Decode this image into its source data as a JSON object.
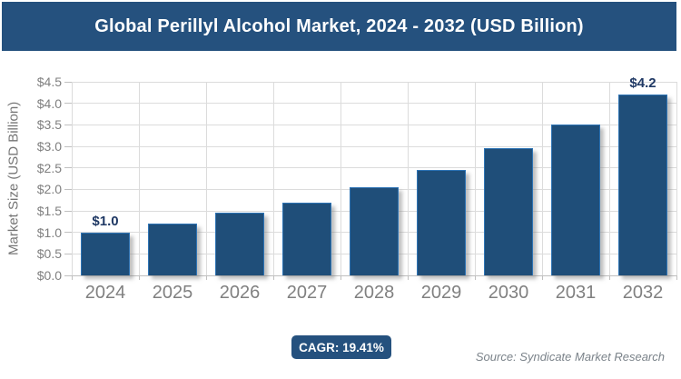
{
  "header": {
    "title": "Global Perillyl Alcohol Market, 2024 - 2032 (USD Billion)"
  },
  "chart_data": {
    "type": "bar",
    "title": "Global Perillyl Alcohol Market, 2024 - 2032 (USD Billion)",
    "categories": [
      "2024",
      "2025",
      "2026",
      "2027",
      "2028",
      "2029",
      "2030",
      "2031",
      "2032"
    ],
    "values": [
      1.0,
      1.2,
      1.45,
      1.7,
      2.05,
      2.45,
      2.95,
      3.5,
      4.2
    ],
    "point_labels": {
      "2024": "$1.0",
      "2032": "$4.2"
    },
    "xlabel": "",
    "ylabel": "Market Size (USD Billion)",
    "ylim": [
      0,
      4.5
    ],
    "ytick_step": 0.5,
    "ytick_prefix": "$",
    "grid": true,
    "legend": false,
    "bar_color": "#1F4E79",
    "bar_border_color": "#2E74B5"
  },
  "footer": {
    "cagr_label": "CAGR: 19.41%",
    "source": "Source: Syndicate Market Research"
  },
  "colors": {
    "banner_background": "#25517E",
    "banner_text": "#FFFFFF",
    "bar_fill": "#1F4E79",
    "bar_border": "#2E74B5",
    "gridline": "#DCDCDC",
    "axis_text": "#7F7F7F",
    "data_label_text": "#1F3864",
    "source_text": "#7B838A"
  }
}
